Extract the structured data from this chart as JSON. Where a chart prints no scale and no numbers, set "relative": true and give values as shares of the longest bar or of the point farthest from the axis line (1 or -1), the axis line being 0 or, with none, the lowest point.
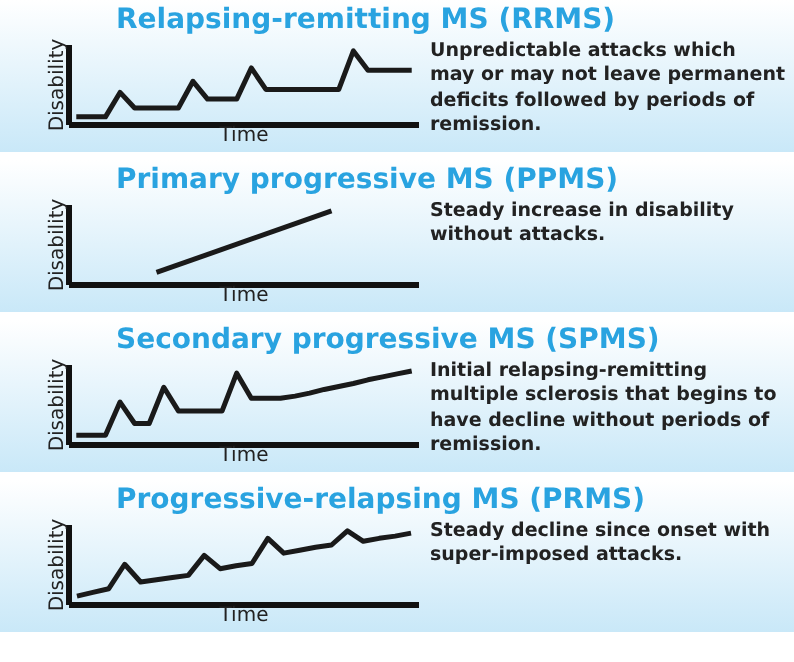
{
  "chart_data": [
    {
      "type": "line",
      "title": "Relapsing-remitting MS (RRMS)",
      "xlabel": "Time",
      "ylabel": "Disability",
      "relative": true,
      "color": "#1a1a1a",
      "categories": [
        null,
        null,
        null,
        null,
        null,
        null,
        null,
        null,
        null,
        null,
        null,
        null,
        null,
        null,
        null,
        null,
        null,
        null,
        null,
        null,
        null,
        null,
        null,
        null
      ],
      "values": [
        0.11,
        0.11,
        0.11,
        0.44,
        0.23,
        0.23,
        0.23,
        0.23,
        0.59,
        0.35,
        0.35,
        0.35,
        0.77,
        0.48,
        0.48,
        0.48,
        0.48,
        0.48,
        0.48,
        1,
        0.74,
        0.74,
        0.74,
        0.74
      ],
      "annotations": [
        "Unpredictable attacks which may or may not leave permanent deficits followed by periods of remission."
      ]
    },
    {
      "type": "line",
      "title": "Primary progressive MS (PPMS)",
      "xlabel": "Time",
      "ylabel": "Disability",
      "relative": true,
      "color": "#1a1a1a",
      "categories": [
        null,
        null
      ],
      "values": [
        0.17,
        1
      ],
      "annotations": [
        "Steady increase in disability without attacks."
      ]
    },
    {
      "type": "line",
      "title": "Secondary progressive MS (SPMS)",
      "xlabel": "Time",
      "ylabel": "Disability",
      "relative": true,
      "color": "#1a1a1a",
      "categories": [
        null,
        null,
        null,
        null,
        null,
        null,
        null,
        null,
        null,
        null,
        null,
        null,
        null,
        null,
        null,
        null,
        null,
        null,
        null,
        null,
        null,
        null,
        null,
        null
      ],
      "values": [
        0.13,
        0.13,
        0.13,
        0.58,
        0.29,
        0.29,
        0.78,
        0.46,
        0.46,
        0.46,
        0.46,
        0.97,
        0.63,
        0.63,
        0.63,
        0.66,
        0.7,
        0.75,
        0.79,
        0.83,
        0.88,
        0.92,
        0.96,
        1
      ],
      "annotations": [
        "Initial relapsing-remitting multiple sclerosis that begins to have decline without periods of remission."
      ]
    },
    {
      "type": "line",
      "title": "Progressive-relapsing MS (PRMS)",
      "xlabel": "Time",
      "ylabel": "Disability",
      "relative": true,
      "color": "#1a1a1a",
      "categories": [
        null,
        null,
        null,
        null,
        null,
        null,
        null,
        null,
        null,
        null,
        null,
        null,
        null,
        null,
        null,
        null,
        null,
        null,
        null,
        null,
        null,
        null
      ],
      "values": [
        0.12,
        0.17,
        0.22,
        0.55,
        0.31,
        0.34,
        0.37,
        0.4,
        0.67,
        0.49,
        0.53,
        0.56,
        0.9,
        0.7,
        0.74,
        0.78,
        0.81,
        1,
        0.86,
        0.9,
        0.93,
        0.97
      ],
      "annotations": [
        "Steady decline since onset with super-imposed attacks."
      ]
    }
  ]
}
